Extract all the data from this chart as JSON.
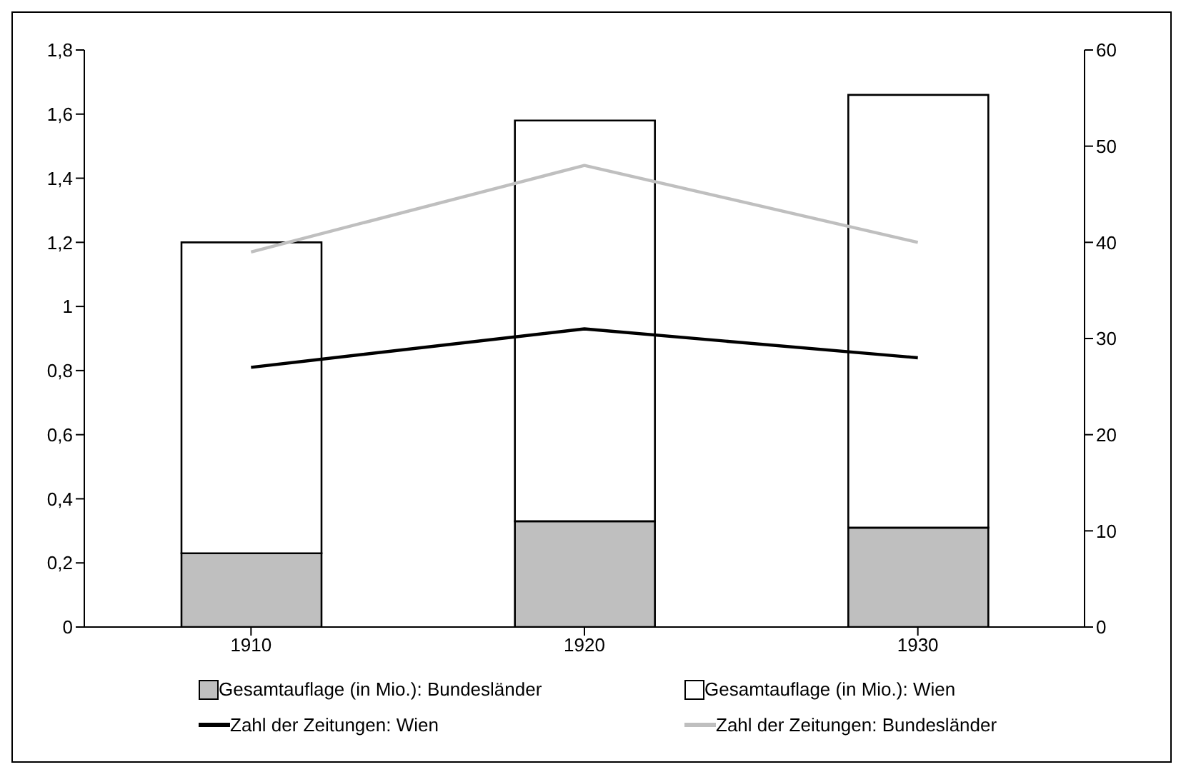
{
  "chart_data": {
    "type": "bar",
    "categories": [
      "1910",
      "1920",
      "1930"
    ],
    "stacked": true,
    "series": [
      {
        "name": "Gesamtauflage (in Mio.): Bundesländer",
        "color": "#bfbfbf",
        "values": [
          0.23,
          0.33,
          0.31
        ]
      },
      {
        "name": "Gesamtauflage (in Mio.): Wien",
        "color": "#ffffff",
        "values": [
          0.97,
          1.25,
          1.35
        ]
      },
      {
        "name": "Zahl der Zeitungen: Wien",
        "type": "line",
        "axis": "y2",
        "color": "#000000",
        "values": [
          27,
          31,
          28
        ]
      },
      {
        "name": "Zahl der Zeitungen: Bundesländer",
        "type": "line",
        "axis": "y2",
        "color": "#bfbfbf",
        "values": [
          39,
          48,
          40
        ]
      }
    ],
    "ylim": [
      0,
      1.8
    ],
    "yticks": [
      0,
      {
        "value": 0.2,
        "label": "0,2"
      },
      {
        "value": 0.4,
        "label": "0,4"
      },
      {
        "value": 0.6,
        "label": "0,6"
      },
      {
        "value": 0.8,
        "label": "0,8"
      },
      1,
      {
        "value": 1.2,
        "label": "1,2"
      },
      {
        "value": 1.4,
        "label": "1,4"
      },
      {
        "value": 1.6,
        "label": "1,6"
      },
      {
        "value": 1.8,
        "label": "1,8"
      }
    ],
    "y2lim": [
      0,
      60
    ],
    "y2ticks": [
      0,
      10,
      20,
      30,
      40,
      50,
      60
    ],
    "legend": "bottom",
    "marker": "none",
    "line_style": "solid"
  }
}
